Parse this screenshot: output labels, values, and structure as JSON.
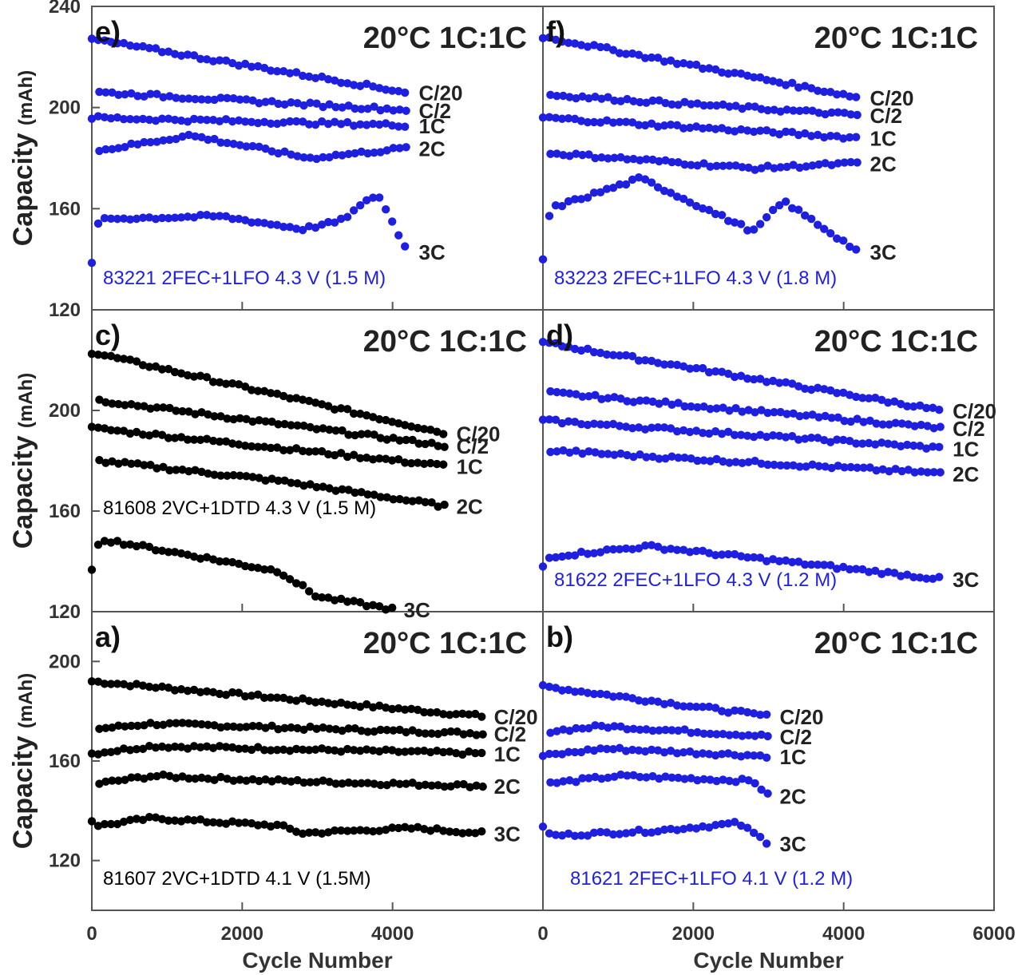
{
  "chart_data": [
    {
      "panel": "a)",
      "type": "scatter",
      "condition": "20°C 1C:1C",
      "annotation": "81607 2VC+1DTD 4.1 V (1.5M)",
      "color": "#000000",
      "ylabel": "Capacity (mAh)",
      "xlim": [
        0,
        6000
      ],
      "ylim": [
        100,
        220
      ],
      "yticks": [
        120,
        160,
        200
      ],
      "xticks": [],
      "series": [
        {
          "name": "C/20",
          "x": [
            0,
            5200
          ],
          "y": [
            192,
            178
          ]
        },
        {
          "name": "C/2",
          "x": [
            100,
            800,
            5200
          ],
          "y": [
            173,
            175,
            171
          ]
        },
        {
          "name": "1C",
          "x": [
            0,
            800,
            5200
          ],
          "y": [
            163,
            166,
            163
          ]
        },
        {
          "name": "2C",
          "x": [
            100,
            800,
            2500,
            5200
          ],
          "y": [
            151,
            154,
            152,
            150
          ]
        },
        {
          "name": "3C",
          "x": [
            0,
            100,
            800,
            2500,
            2800,
            3500,
            4300,
            5200
          ],
          "y": [
            136,
            134,
            137,
            134,
            131,
            132,
            133,
            131
          ]
        }
      ]
    },
    {
      "panel": "b)",
      "type": "scatter",
      "condition": "20°C 1C:1C",
      "annotation": "81621 2FEC+1LFO 4.1 V (1.2 M)",
      "color": "#1f1fe0",
      "xlim": [
        0,
        6000
      ],
      "ylim": [
        100,
        220
      ],
      "series": [
        {
          "name": "C/20",
          "x": [
            0,
            3000
          ],
          "y": [
            190,
            178
          ]
        },
        {
          "name": "C/2",
          "x": [
            100,
            800,
            3000
          ],
          "y": [
            172,
            174,
            170
          ]
        },
        {
          "name": "1C",
          "x": [
            0,
            800,
            3000
          ],
          "y": [
            162,
            165,
            162
          ]
        },
        {
          "name": "2C",
          "x": [
            100,
            1000,
            2800,
            3000
          ],
          "y": [
            151,
            154,
            152,
            146
          ]
        },
        {
          "name": "3C",
          "x": [
            0,
            100,
            1500,
            2600,
            3000
          ],
          "y": [
            134,
            130,
            132,
            135,
            127
          ]
        }
      ]
    },
    {
      "panel": "c)",
      "type": "scatter",
      "condition": "20°C 1C:1C",
      "annotation": "81608 2VC+1DTD 4.3 V (1.5 M)",
      "color": "#000000",
      "ylabel": "Capacity (mAh)",
      "xlim": [
        0,
        6000
      ],
      "ylim": [
        120,
        240
      ],
      "yticks": [
        120,
        160,
        200
      ],
      "series": [
        {
          "name": "C/20",
          "x": [
            0,
            4700
          ],
          "y": [
            223,
            191
          ]
        },
        {
          "name": "C/2",
          "x": [
            100,
            4700
          ],
          "y": [
            204,
            186
          ]
        },
        {
          "name": "1C",
          "x": [
            0,
            4700
          ],
          "y": [
            193,
            178
          ]
        },
        {
          "name": "2C",
          "x": [
            100,
            2500,
            4700
          ],
          "y": [
            180,
            172,
            162
          ]
        },
        {
          "name": "3C",
          "x": [
            0,
            100,
            2500,
            3000,
            4000
          ],
          "y": [
            136,
            149,
            136,
            126,
            121
          ]
        }
      ]
    },
    {
      "panel": "d)",
      "type": "scatter",
      "condition": "20°C 1C:1C",
      "annotation": "81622 2FEC+1LFO 4.3 V (1.2 M)",
      "color": "#1f1fe0",
      "xlim": [
        0,
        6000
      ],
      "ylim": [
        120,
        240
      ],
      "series": [
        {
          "name": "C/20",
          "x": [
            0,
            5300
          ],
          "y": [
            227,
            200
          ]
        },
        {
          "name": "C/2",
          "x": [
            100,
            5300
          ],
          "y": [
            207,
            193
          ]
        },
        {
          "name": "1C",
          "x": [
            0,
            5300
          ],
          "y": [
            196,
            185
          ]
        },
        {
          "name": "2C",
          "x": [
            100,
            5300
          ],
          "y": [
            184,
            175
          ]
        },
        {
          "name": "3C",
          "x": [
            0,
            100,
            1400,
            5300
          ],
          "y": [
            138,
            142,
            146,
            133
          ]
        }
      ]
    },
    {
      "panel": "e)",
      "type": "scatter",
      "condition": "20°C 1C:1C",
      "annotation": "83221 2FEC+1LFO 4.3 V (1.5 M)",
      "color": "#1f1fe0",
      "ylabel": "Capacity (mAh)",
      "xlim": [
        0,
        6000
      ],
      "ylim": [
        120,
        240
      ],
      "yticks": [
        120,
        160,
        200,
        240
      ],
      "series": [
        {
          "name": "C/20",
          "x": [
            0,
            4200
          ],
          "y": [
            227,
            206
          ]
        },
        {
          "name": "C/2",
          "x": [
            100,
            4200
          ],
          "y": [
            206,
            199
          ]
        },
        {
          "name": "1C",
          "x": [
            0,
            4200
          ],
          "y": [
            196,
            193
          ]
        },
        {
          "name": "2C",
          "x": [
            100,
            1300,
            2900,
            4200
          ],
          "y": [
            183,
            189,
            180,
            184
          ]
        },
        {
          "name": "3C",
          "x": [
            0,
            100,
            1700,
            2800,
            3300,
            3800,
            4200
          ],
          "y": [
            139,
            156,
            157,
            152,
            155,
            166,
            143
          ]
        }
      ]
    },
    {
      "panel": "f)",
      "type": "scatter",
      "condition": "20°C 1C:1C",
      "annotation": "83223 2FEC+1LFO 4.3 V (1.8 M)",
      "color": "#1f1fe0",
      "xlim": [
        0,
        6000
      ],
      "ylim": [
        120,
        240
      ],
      "series": [
        {
          "name": "C/20",
          "x": [
            0,
            4200
          ],
          "y": [
            228,
            204
          ]
        },
        {
          "name": "C/2",
          "x": [
            100,
            4200
          ],
          "y": [
            205,
            197
          ]
        },
        {
          "name": "1C",
          "x": [
            0,
            4200
          ],
          "y": [
            196,
            188
          ]
        },
        {
          "name": "2C",
          "x": [
            100,
            2800,
            4200
          ],
          "y": [
            182,
            176,
            178
          ]
        },
        {
          "name": "3C",
          "x": [
            0,
            100,
            1300,
            2800,
            3200,
            4200
          ],
          "y": [
            140,
            160,
            172,
            151,
            163,
            143
          ]
        }
      ]
    }
  ],
  "xaxis": {
    "label": "Cycle Number",
    "ticks_left": [
      "0",
      "2000",
      "4000"
    ],
    "ticks_right": [
      "0",
      "2000",
      "4000",
      "6000"
    ]
  },
  "ylabel_main": "Capacity",
  "ylabel_unit": "(mAh)"
}
